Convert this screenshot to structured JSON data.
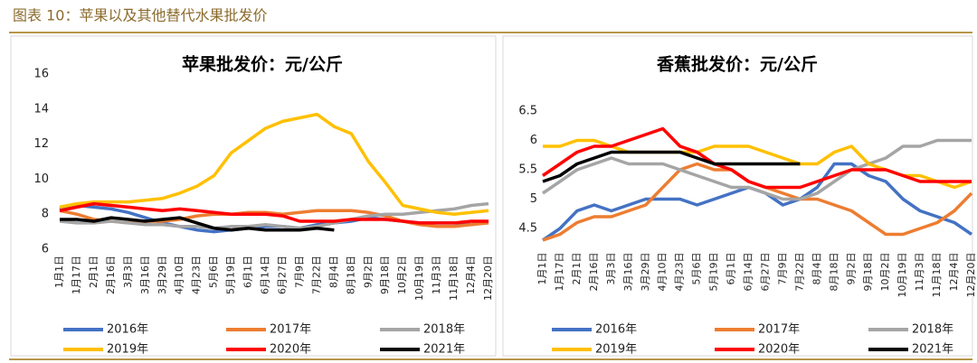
{
  "header": {
    "title": "图表 10：苹果以及其他替代水果批发价"
  },
  "chart_data": [
    {
      "type": "line",
      "title": "苹果批发价：元/公斤",
      "categories": [
        "1月1日",
        "1月17日",
        "2月1日",
        "2月16日",
        "3月3日",
        "3月16日",
        "3月29日",
        "4月10日",
        "4月23日",
        "5月6日",
        "5月19日",
        "6月1日",
        "6月14日",
        "6月27日",
        "7月9日",
        "7月22日",
        "8月4日",
        "8月18日",
        "9月2日",
        "9月18日",
        "10月2日",
        "10月19日",
        "11月3日",
        "11月18日",
        "12月4日",
        "12月20日"
      ],
      "ylim": [
        6,
        16
      ],
      "yticks": [
        6,
        8,
        10,
        12,
        14,
        16
      ],
      "grid": false,
      "legend": "bottom",
      "series": [
        {
          "name": "2016年",
          "color": "#4472c4",
          "values": [
            8.3,
            8.5,
            8.4,
            8.3,
            8.1,
            7.8,
            7.5,
            7.3,
            7.1,
            7.0,
            7.1,
            7.2,
            7.3,
            7.3,
            7.2,
            7.4,
            7.5,
            7.6,
            7.8,
            7.7,
            7.6,
            7.5,
            7.5,
            7.5,
            7.4,
            7.6
          ]
        },
        {
          "name": "2017年",
          "color": "#ed7d31",
          "values": [
            8.2,
            8.0,
            7.7,
            7.6,
            7.5,
            7.6,
            7.6,
            7.7,
            7.9,
            8.0,
            8.0,
            8.1,
            8.1,
            8.0,
            8.1,
            8.2,
            8.2,
            8.2,
            8.1,
            7.9,
            7.6,
            7.4,
            7.3,
            7.3,
            7.4,
            7.5
          ]
        },
        {
          "name": "2018年",
          "color": "#a5a5a5",
          "values": [
            7.6,
            7.5,
            7.5,
            7.6,
            7.5,
            7.4,
            7.4,
            7.3,
            7.3,
            7.2,
            7.3,
            7.3,
            7.4,
            7.3,
            7.2,
            7.3,
            7.5,
            7.7,
            7.9,
            8.0,
            8.0,
            8.1,
            8.2,
            8.3,
            8.5,
            8.6
          ]
        },
        {
          "name": "2019年",
          "color": "#ffc000",
          "values": [
            8.4,
            8.6,
            8.7,
            8.7,
            8.7,
            8.8,
            8.9,
            9.2,
            9.6,
            10.2,
            11.5,
            12.2,
            12.9,
            13.3,
            13.5,
            13.7,
            13.0,
            12.6,
            11.0,
            9.8,
            8.5,
            8.3,
            8.1,
            8.0,
            8.1,
            8.2
          ]
        },
        {
          "name": "2020年",
          "color": "#ff0000",
          "values": [
            8.2,
            8.4,
            8.6,
            8.5,
            8.4,
            8.3,
            8.2,
            8.3,
            8.2,
            8.1,
            8.0,
            8.0,
            8.0,
            7.9,
            7.6,
            7.6,
            7.6,
            7.7,
            7.7,
            7.7,
            7.6,
            7.5,
            7.5,
            7.5,
            7.6,
            7.6
          ]
        },
        {
          "name": "2021年",
          "color": "#000000",
          "values": [
            7.7,
            7.7,
            7.6,
            7.8,
            7.7,
            7.6,
            7.7,
            7.8,
            7.5,
            7.2,
            7.1,
            7.2,
            7.1,
            7.1,
            7.1,
            7.2,
            7.1,
            null,
            null,
            null,
            null,
            null,
            null,
            null,
            null,
            null
          ]
        }
      ]
    },
    {
      "type": "line",
      "title": "香蕉批发价：元/公斤",
      "categories": [
        "1月1日",
        "1月17日",
        "2月1日",
        "2月16日",
        "3月3日",
        "3月16日",
        "3月29日",
        "4月10日",
        "4月23日",
        "5月6日",
        "5月19日",
        "6月1日",
        "6月14日",
        "6月27日",
        "7月9日",
        "7月22日",
        "8月4日",
        "8月18日",
        "9月2日",
        "9月18日",
        "10月2日",
        "10月19日",
        "11月3日",
        "11月18日",
        "12月4日",
        "12月20日"
      ],
      "ylim": [
        4.2,
        6.5
      ],
      "yticks": [
        4.5,
        5,
        5.5,
        6,
        6.5
      ],
      "grid": false,
      "legend": "bottom",
      "series": [
        {
          "name": "2016年",
          "color": "#4472c4",
          "values": [
            4.3,
            4.5,
            4.8,
            4.9,
            4.8,
            4.9,
            5.0,
            5.0,
            5.0,
            4.9,
            5.0,
            5.1,
            5.2,
            5.1,
            4.9,
            5.0,
            5.2,
            5.6,
            5.6,
            5.4,
            5.3,
            5.0,
            4.8,
            4.7,
            4.6,
            4.4
          ]
        },
        {
          "name": "2017年",
          "color": "#ed7d31",
          "values": [
            4.3,
            4.4,
            4.6,
            4.7,
            4.7,
            4.8,
            4.9,
            5.2,
            5.5,
            5.6,
            5.5,
            5.5,
            5.3,
            5.2,
            5.1,
            5.0,
            5.0,
            4.9,
            4.8,
            4.6,
            4.4,
            4.4,
            4.5,
            4.6,
            4.8,
            5.1
          ]
        },
        {
          "name": "2018年",
          "color": "#a5a5a5",
          "values": [
            5.1,
            5.3,
            5.5,
            5.6,
            5.7,
            5.6,
            5.6,
            5.6,
            5.5,
            5.4,
            5.3,
            5.2,
            5.2,
            5.1,
            5.0,
            5.0,
            5.1,
            5.3,
            5.5,
            5.6,
            5.7,
            5.9,
            5.9,
            6.0,
            6.0,
            6.0
          ]
        },
        {
          "name": "2019年",
          "color": "#ffc000",
          "values": [
            5.9,
            5.9,
            6.0,
            6.0,
            5.9,
            5.8,
            5.8,
            5.8,
            5.8,
            5.8,
            5.9,
            5.9,
            5.9,
            5.8,
            5.7,
            5.6,
            5.6,
            5.8,
            5.9,
            5.6,
            5.5,
            5.4,
            5.4,
            5.3,
            5.2,
            5.3
          ]
        },
        {
          "name": "2020年",
          "color": "#ff0000",
          "values": [
            5.4,
            5.6,
            5.8,
            5.9,
            5.9,
            6.0,
            6.1,
            6.2,
            5.9,
            5.8,
            5.6,
            5.5,
            5.3,
            5.2,
            5.2,
            5.2,
            5.3,
            5.4,
            5.5,
            5.5,
            5.5,
            5.4,
            5.3,
            5.3,
            5.3,
            5.3
          ]
        },
        {
          "name": "2021年",
          "color": "#000000",
          "values": [
            5.3,
            5.4,
            5.6,
            5.7,
            5.8,
            5.8,
            5.8,
            5.8,
            5.8,
            5.7,
            5.6,
            5.6,
            5.6,
            5.6,
            5.6,
            5.6,
            null,
            null,
            null,
            null,
            null,
            null,
            null,
            null,
            null,
            null
          ]
        }
      ]
    }
  ]
}
